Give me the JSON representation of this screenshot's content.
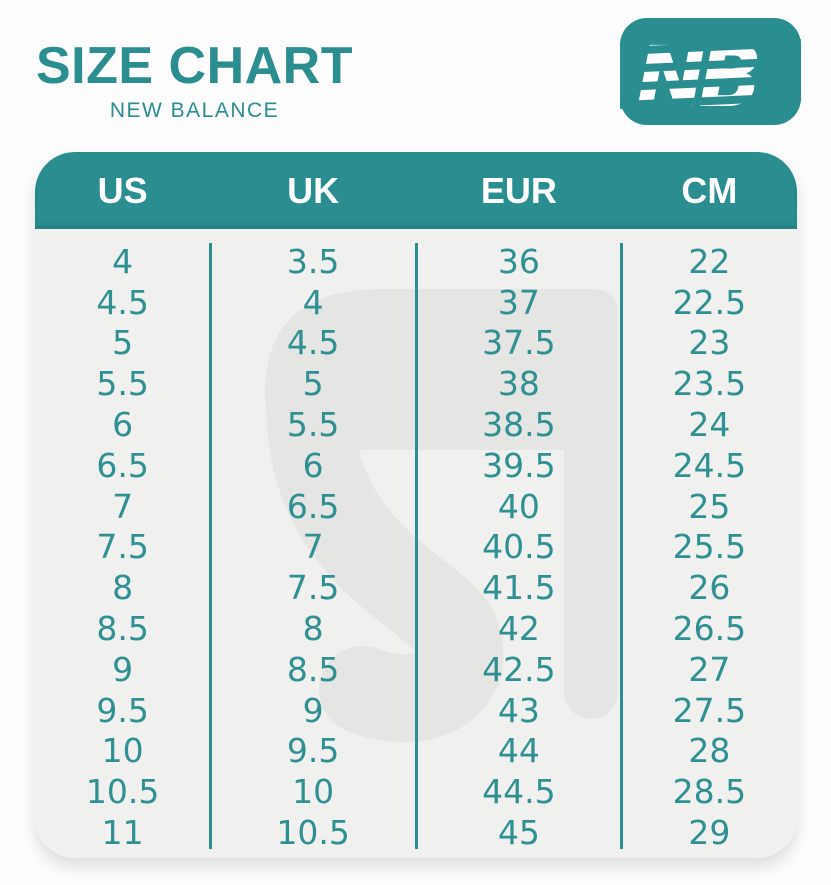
{
  "header": {
    "title": "SIZE CHART",
    "subtitle": "NEW BALANCE",
    "logo_text": "NB",
    "logo_alt": "New Balance logo"
  },
  "table": {
    "columns": [
      "US",
      "UK",
      "EUR",
      "CM"
    ],
    "rows": [
      [
        "4",
        "3.5",
        "36",
        "22"
      ],
      [
        "4.5",
        "4",
        "37",
        "22.5"
      ],
      [
        "5",
        "4.5",
        "37.5",
        "23"
      ],
      [
        "5.5",
        "5",
        "38",
        "23.5"
      ],
      [
        "6",
        "5.5",
        "38.5",
        "24"
      ],
      [
        "6.5",
        "6",
        "39.5",
        "24.5"
      ],
      [
        "7",
        "6.5",
        "40",
        "25"
      ],
      [
        "7.5",
        "7",
        "40.5",
        "25.5"
      ],
      [
        "8",
        "7.5",
        "41.5",
        "26"
      ],
      [
        "8.5",
        "8",
        "42",
        "26.5"
      ],
      [
        "9",
        "8.5",
        "42.5",
        "27"
      ],
      [
        "9.5",
        "9",
        "43",
        "27.5"
      ],
      [
        "10",
        "9.5",
        "44",
        "28"
      ],
      [
        "10.5",
        "10",
        "44.5",
        "28.5"
      ],
      [
        "11",
        "10.5",
        "45",
        "29"
      ]
    ]
  },
  "chart_data": {
    "type": "table",
    "title": "SIZE CHART - NEW BALANCE",
    "columns": [
      "US",
      "UK",
      "EUR",
      "CM"
    ],
    "rows": [
      [
        "4",
        "3.5",
        "36",
        "22"
      ],
      [
        "4.5",
        "4",
        "37",
        "22.5"
      ],
      [
        "5",
        "4.5",
        "37.5",
        "23"
      ],
      [
        "5.5",
        "5",
        "38",
        "23.5"
      ],
      [
        "6",
        "5.5",
        "38.5",
        "24"
      ],
      [
        "6.5",
        "6",
        "39.5",
        "24.5"
      ],
      [
        "7",
        "6.5",
        "40",
        "25"
      ],
      [
        "7.5",
        "7",
        "40.5",
        "25.5"
      ],
      [
        "8",
        "7.5",
        "41.5",
        "26"
      ],
      [
        "8.5",
        "8",
        "42",
        "26.5"
      ],
      [
        "9",
        "8.5",
        "42.5",
        "27"
      ],
      [
        "9.5",
        "9",
        "43",
        "27.5"
      ],
      [
        "10",
        "9.5",
        "44",
        "28"
      ],
      [
        "10.5",
        "10",
        "44.5",
        "28.5"
      ],
      [
        "11",
        "10.5",
        "45",
        "29"
      ]
    ]
  },
  "colors": {
    "accent": "#2a8d90",
    "number_text": "#2e9093",
    "header_text": "#ffffff",
    "table_body_bg": "#f0f0ee",
    "watermark": "#e5e5e3",
    "page_bg": "#fdfdfd"
  }
}
